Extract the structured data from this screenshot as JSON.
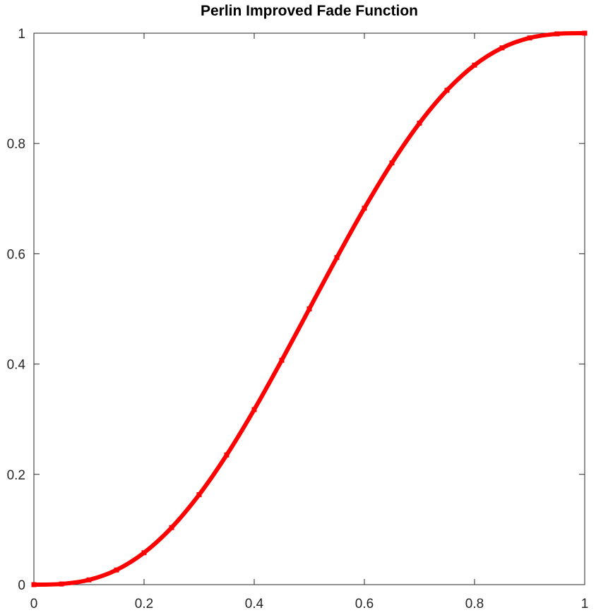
{
  "chart_data": {
    "type": "line",
    "title": "Perlin Improved Fade Function",
    "xlabel": "",
    "ylabel": "",
    "xlim": [
      0,
      1
    ],
    "ylim": [
      0,
      1
    ],
    "grid": false,
    "box": true,
    "x_ticks": [
      0,
      0.2,
      0.4,
      0.6,
      0.8,
      1
    ],
    "x_tick_labels": [
      "0",
      "0.2",
      "0.4",
      "0.6",
      "0.8",
      "1"
    ],
    "y_ticks": [
      0,
      0.2,
      0.4,
      0.6,
      0.8,
      1
    ],
    "y_tick_labels": [
      "0",
      "0.2",
      "0.4",
      "0.6",
      "0.8",
      "1"
    ],
    "series": [
      {
        "color": "#ff0000",
        "marker": "square",
        "x": [
          0,
          0.05,
          0.1,
          0.15,
          0.2,
          0.25,
          0.3,
          0.35,
          0.4,
          0.45,
          0.5,
          0.55,
          0.6,
          0.65,
          0.7,
          0.75,
          0.8,
          0.85,
          0.9,
          0.95,
          1
        ],
        "y": [
          0,
          0.0012,
          0.0086,
          0.0266,
          0.0579,
          0.1035,
          0.1631,
          0.2352,
          0.3174,
          0.4069,
          0.5,
          0.5931,
          0.6826,
          0.7648,
          0.8369,
          0.8965,
          0.9421,
          0.9734,
          0.9914,
          0.9988,
          1
        ]
      }
    ]
  }
}
